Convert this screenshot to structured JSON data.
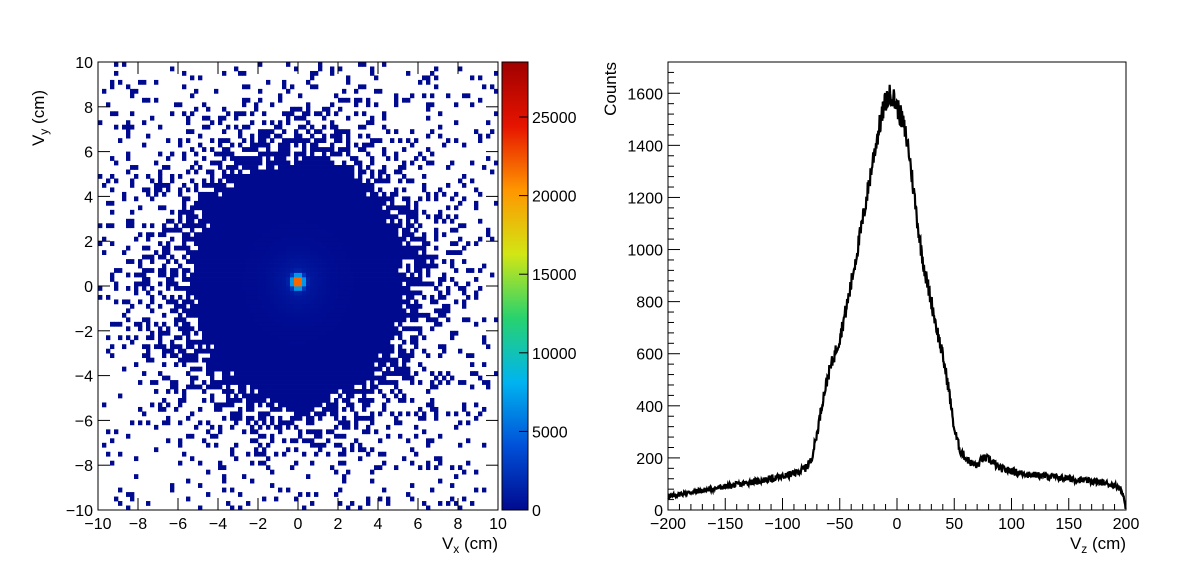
{
  "chart_data": [
    {
      "type": "heatmap",
      "title": "",
      "xlabel": "V",
      "xlabel_sub": "x",
      "xlabel_unit": " (cm)",
      "ylabel": "V",
      "ylabel_sub": "y",
      "ylabel_unit": " (cm)",
      "xlim": [
        -10,
        10
      ],
      "ylim": [
        -10,
        10
      ],
      "x_ticks": [
        "−10",
        "−8",
        "−6",
        "−4",
        "−2",
        "0",
        "2",
        "4",
        "6",
        "8",
        "10"
      ],
      "y_ticks": [
        "−10",
        "−8",
        "−6",
        "−4",
        "−2",
        "0",
        "2",
        "4",
        "6",
        "8",
        "10"
      ],
      "colorbar": {
        "range": [
          0,
          28500
        ],
        "ticks": [
          "0",
          "5000",
          "10000",
          "15000",
          "20000",
          "25000"
        ],
        "tick_values": [
          0,
          5000,
          10000,
          15000,
          20000,
          25000
        ],
        "palette": [
          "#000a8f",
          "#0050d8",
          "#00b4f0",
          "#28d26e",
          "#d2e614",
          "#ff9600",
          "#e61400",
          "#a00000"
        ]
      },
      "bins_per_axis": 100,
      "distribution": {
        "description_free_params": true,
        "core_center": [
          0.0,
          0.2
        ],
        "core_peak": 28500,
        "dense_radius": 5.0,
        "sparse_edge_radius": 10
      },
      "grid": false
    },
    {
      "type": "line",
      "title": "",
      "xlabel": "V",
      "xlabel_sub": "z",
      "xlabel_unit": " (cm)",
      "ylabel": "Counts",
      "xlim": [
        -200,
        200
      ],
      "ylim": [
        0,
        1720
      ],
      "x_ticks": [
        "−200",
        "−150",
        "−100",
        "−50",
        "0",
        "50",
        "100",
        "150",
        "200"
      ],
      "x_tick_values": [
        -200,
        -150,
        -100,
        -50,
        0,
        50,
        100,
        150,
        200
      ],
      "y_ticks": [
        "0",
        "200",
        "400",
        "600",
        "800",
        "1000",
        "1200",
        "1400",
        "1600"
      ],
      "y_tick_values": [
        0,
        200,
        400,
        600,
        800,
        1000,
        1200,
        1400,
        1600
      ],
      "series": [
        {
          "x": [
            -200,
            -190,
            -180,
            -170,
            -160,
            -150,
            -140,
            -130,
            -120,
            -110,
            -100,
            -90,
            -80,
            -75,
            -70,
            -65,
            -60,
            -55,
            -50,
            -45,
            -40,
            -35,
            -30,
            -25,
            -20,
            -15,
            -10,
            -5,
            0,
            5,
            10,
            15,
            20,
            25,
            30,
            35,
            40,
            45,
            50,
            55,
            60,
            65,
            70,
            75,
            80,
            90,
            100,
            110,
            120,
            130,
            140,
            150,
            160,
            170,
            180,
            190,
            195,
            198,
            200
          ],
          "y": [
            50,
            60,
            68,
            75,
            82,
            90,
            97,
            105,
            112,
            120,
            128,
            140,
            160,
            190,
            290,
            420,
            520,
            590,
            660,
            760,
            870,
            990,
            1110,
            1240,
            1370,
            1480,
            1570,
            1600,
            1550,
            1490,
            1390,
            1210,
            1030,
            900,
            800,
            690,
            590,
            470,
            310,
            230,
            200,
            180,
            170,
            200,
            195,
            160,
            150,
            140,
            135,
            130,
            125,
            120,
            115,
            110,
            105,
            95,
            85,
            50,
            0
          ]
        }
      ],
      "grid": false
    }
  ]
}
